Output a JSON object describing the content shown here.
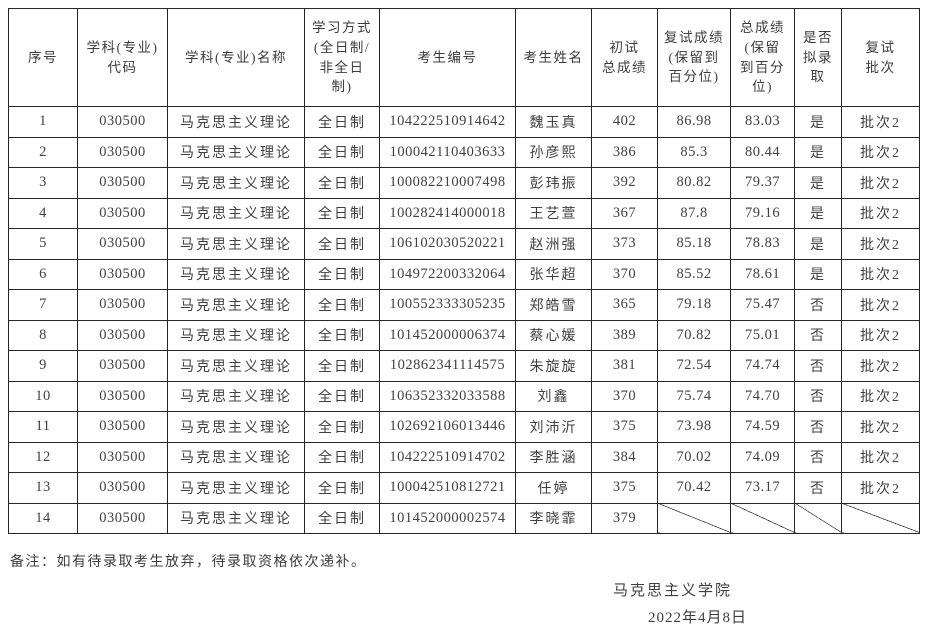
{
  "colors": {
    "background": "#ffffff",
    "text": "#414141",
    "border": "#262626"
  },
  "table": {
    "column_keys": [
      "no",
      "code",
      "major",
      "mode",
      "candidate_no",
      "name",
      "initial_score",
      "retest_score",
      "total_score",
      "admitted",
      "batch"
    ],
    "headers": [
      {
        "key": "no",
        "lines": [
          "序号"
        ]
      },
      {
        "key": "code",
        "lines": [
          "学科(专业)",
          "代码"
        ]
      },
      {
        "key": "major",
        "lines": [
          "学科(专业)名称"
        ]
      },
      {
        "key": "mode",
        "lines": [
          "学习方式",
          "(全日制/",
          "非全日",
          "制)"
        ]
      },
      {
        "key": "candidate_no",
        "lines": [
          "考生编号"
        ]
      },
      {
        "key": "name",
        "lines": [
          "考生姓名"
        ]
      },
      {
        "key": "initial_score",
        "lines": [
          "初试",
          "总成绩"
        ]
      },
      {
        "key": "retest_score",
        "lines": [
          "复试成绩",
          "(保留到",
          "百分位)"
        ]
      },
      {
        "key": "total_score",
        "lines": [
          "总成绩",
          "(保留",
          "到百分",
          "位)"
        ]
      },
      {
        "key": "admitted",
        "lines": [
          "是否",
          "拟录",
          "取"
        ]
      },
      {
        "key": "batch",
        "lines": [
          "复试",
          "批次"
        ]
      }
    ],
    "rows": [
      {
        "no": "1",
        "code": "030500",
        "major": "马克思主义理论",
        "mode": "全日制",
        "candidate_no": "104222510914642",
        "name": "魏玉真",
        "initial_score": "402",
        "retest_score": "86.98",
        "total_score": "83.03",
        "admitted": "是",
        "batch": "批次2"
      },
      {
        "no": "2",
        "code": "030500",
        "major": "马克思主义理论",
        "mode": "全日制",
        "candidate_no": "100042110403633",
        "name": "孙彦熙",
        "initial_score": "386",
        "retest_score": "85.3",
        "total_score": "80.44",
        "admitted": "是",
        "batch": "批次2"
      },
      {
        "no": "3",
        "code": "030500",
        "major": "马克思主义理论",
        "mode": "全日制",
        "candidate_no": "100082210007498",
        "name": "彭玮振",
        "initial_score": "392",
        "retest_score": "80.82",
        "total_score": "79.37",
        "admitted": "是",
        "batch": "批次2"
      },
      {
        "no": "4",
        "code": "030500",
        "major": "马克思主义理论",
        "mode": "全日制",
        "candidate_no": "100282414000018",
        "name": "王艺萱",
        "initial_score": "367",
        "retest_score": "87.8",
        "total_score": "79.16",
        "admitted": "是",
        "batch": "批次2"
      },
      {
        "no": "5",
        "code": "030500",
        "major": "马克思主义理论",
        "mode": "全日制",
        "candidate_no": "106102030520221",
        "name": "赵洲强",
        "initial_score": "373",
        "retest_score": "85.18",
        "total_score": "78.83",
        "admitted": "是",
        "batch": "批次2"
      },
      {
        "no": "6",
        "code": "030500",
        "major": "马克思主义理论",
        "mode": "全日制",
        "candidate_no": "104972200332064",
        "name": "张华超",
        "initial_score": "370",
        "retest_score": "85.52",
        "total_score": "78.61",
        "admitted": "是",
        "batch": "批次2"
      },
      {
        "no": "7",
        "code": "030500",
        "major": "马克思主义理论",
        "mode": "全日制",
        "candidate_no": "100552333305235",
        "name": "郑皓雪",
        "initial_score": "365",
        "retest_score": "79.18",
        "total_score": "75.47",
        "admitted": "否",
        "batch": "批次2"
      },
      {
        "no": "8",
        "code": "030500",
        "major": "马克思主义理论",
        "mode": "全日制",
        "candidate_no": "101452000006374",
        "name": "蔡心媛",
        "initial_score": "389",
        "retest_score": "70.82",
        "total_score": "75.01",
        "admitted": "否",
        "batch": "批次2"
      },
      {
        "no": "9",
        "code": "030500",
        "major": "马克思主义理论",
        "mode": "全日制",
        "candidate_no": "102862341114575",
        "name": "朱旋旋",
        "initial_score": "381",
        "retest_score": "72.54",
        "total_score": "74.74",
        "admitted": "否",
        "batch": "批次2"
      },
      {
        "no": "10",
        "code": "030500",
        "major": "马克思主义理论",
        "mode": "全日制",
        "candidate_no": "106352332033588",
        "name": "刘鑫",
        "initial_score": "370",
        "retest_score": "75.74",
        "total_score": "74.70",
        "admitted": "否",
        "batch": "批次2"
      },
      {
        "no": "11",
        "code": "030500",
        "major": "马克思主义理论",
        "mode": "全日制",
        "candidate_no": "102692106013446",
        "name": "刘沛沂",
        "initial_score": "375",
        "retest_score": "73.98",
        "total_score": "74.59",
        "admitted": "否",
        "batch": "批次2"
      },
      {
        "no": "12",
        "code": "030500",
        "major": "马克思主义理论",
        "mode": "全日制",
        "candidate_no": "104222510914702",
        "name": "李胜涵",
        "initial_score": "384",
        "retest_score": "70.02",
        "total_score": "74.09",
        "admitted": "否",
        "batch": "批次2"
      },
      {
        "no": "13",
        "code": "030500",
        "major": "马克思主义理论",
        "mode": "全日制",
        "candidate_no": "100042510812721",
        "name": "任婷",
        "initial_score": "375",
        "retest_score": "70.42",
        "total_score": "73.17",
        "admitted": "否",
        "batch": "批次2"
      },
      {
        "no": "14",
        "code": "030500",
        "major": "马克思主义理论",
        "mode": "全日制",
        "candidate_no": "101452000002574",
        "name": "李晓霏",
        "initial_score": "379",
        "retest_score": null,
        "total_score": null,
        "admitted": null,
        "batch": null
      }
    ]
  },
  "footer": {
    "note": "备注：如有待录取考生放弃，待录取资格依次递补。",
    "college": "马克思主义学院",
    "date": "2022年4月8日"
  }
}
